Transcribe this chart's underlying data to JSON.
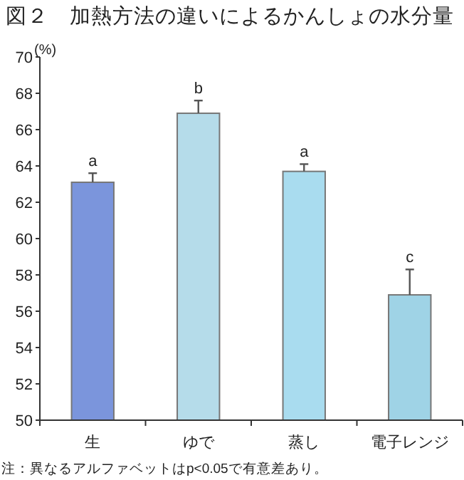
{
  "chart_data": {
    "type": "bar",
    "title": "図２　加熱方法の違いによるかんしょの水分量",
    "ylabel": "(%)",
    "categories": [
      "生",
      "ゆで",
      "蒸し",
      "電子レンジ"
    ],
    "values": [
      63.1,
      66.9,
      63.7,
      56.9
    ],
    "errors": [
      0.5,
      0.7,
      0.4,
      1.4
    ],
    "colors": [
      "#7b95dc",
      "#b5dcea",
      "#a9dcef",
      "#9fd3e6"
    ],
    "ylim": [
      50,
      70
    ],
    "yticks": [
      50,
      52,
      54,
      56,
      58,
      60,
      62,
      64,
      66,
      68,
      70
    ],
    "annotations": [
      {
        "text": "a",
        "x": "生",
        "y": 63.6
      },
      {
        "text": "b",
        "x": "ゆで",
        "y": 67.6
      },
      {
        "text": "a",
        "x": "蒸し",
        "y": 64.1
      },
      {
        "text": "c",
        "x": "電子レンジ",
        "y": 58.3
      },
      "注：異なるアルファベットはp<0.05で有意差あり。"
    ]
  }
}
